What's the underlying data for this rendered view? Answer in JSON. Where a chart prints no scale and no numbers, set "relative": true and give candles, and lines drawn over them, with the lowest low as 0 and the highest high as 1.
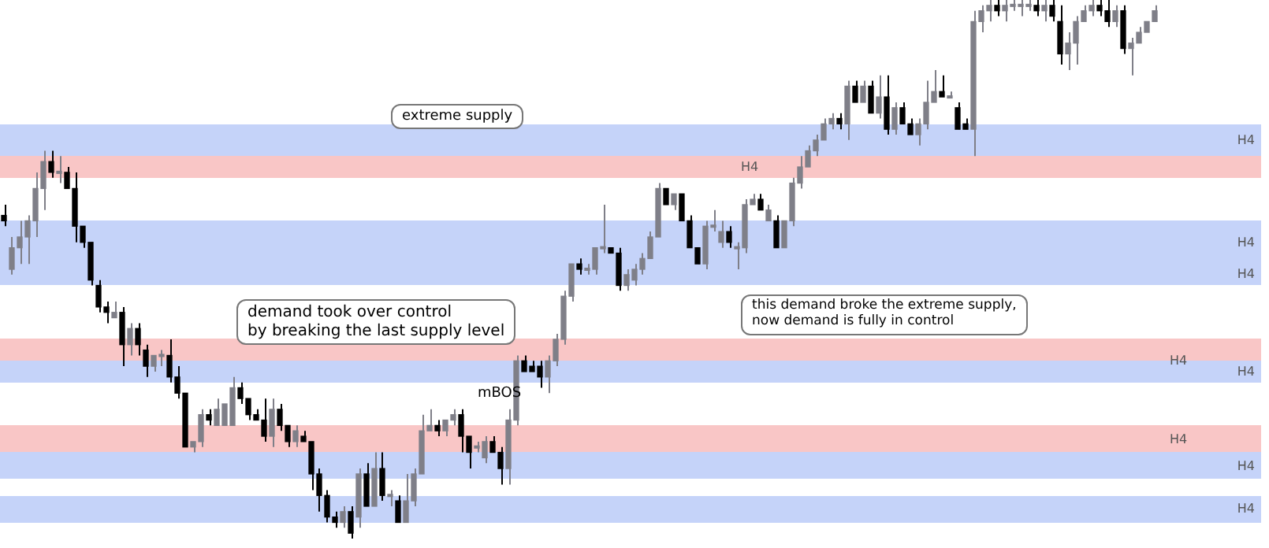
{
  "chart_data": {
    "type": "candlestick",
    "relative": true,
    "categories": [
      null,
      null,
      null,
      null,
      null,
      null,
      null,
      null,
      null,
      null,
      null,
      null,
      null,
      null,
      null,
      null,
      null,
      null,
      null,
      null,
      null,
      null,
      null,
      null,
      null,
      null,
      null,
      null,
      null,
      null,
      null,
      null,
      null,
      null,
      null,
      null,
      null,
      null,
      null,
      null,
      null,
      null,
      null,
      null,
      null,
      null,
      null,
      null,
      null,
      null,
      null,
      null,
      null,
      null,
      null,
      null,
      null,
      null,
      null,
      null,
      null,
      null,
      null,
      null,
      null,
      null,
      null,
      null,
      null,
      null,
      null,
      null,
      null,
      null,
      null,
      null,
      null,
      null,
      null,
      null,
      null,
      null,
      null,
      null,
      null,
      null,
      null,
      null,
      null,
      null,
      null,
      null,
      null,
      null,
      null,
      null,
      null,
      null,
      null,
      null,
      null,
      null,
      null,
      null,
      null,
      null,
      null,
      null,
      null,
      null,
      null,
      null,
      null,
      null,
      null,
      null,
      null,
      null,
      null,
      null,
      null,
      null,
      null,
      null,
      null,
      null,
      null,
      null,
      null,
      null,
      null,
      null,
      null,
      null,
      null,
      null,
      null,
      null,
      null,
      null,
      null,
      null,
      null,
      null,
      null,
      null,
      null
    ],
    "ohlc": [
      [
        0.6,
        0.62,
        0.58,
        0.59
      ],
      [
        0.5,
        0.56,
        0.49,
        0.54
      ],
      [
        0.54,
        0.59,
        0.51,
        0.56
      ],
      [
        0.56,
        0.6,
        0.51,
        0.59
      ],
      [
        0.59,
        0.68,
        0.56,
        0.65
      ],
      [
        0.65,
        0.72,
        0.61,
        0.7
      ],
      [
        0.7,
        0.72,
        0.67,
        0.68
      ],
      [
        0.68,
        0.71,
        0.66,
        0.68
      ],
      [
        0.68,
        0.69,
        0.65,
        0.65
      ],
      [
        0.65,
        0.68,
        0.55,
        0.58
      ],
      [
        0.58,
        0.58,
        0.54,
        0.55
      ],
      [
        0.55,
        0.55,
        0.47,
        0.48
      ],
      [
        0.47,
        0.48,
        0.42,
        0.43
      ],
      [
        0.43,
        0.44,
        0.4,
        0.42
      ],
      [
        0.41,
        0.44,
        0.41,
        0.42
      ],
      [
        0.42,
        0.43,
        0.32,
        0.36
      ],
      [
        0.36,
        0.4,
        0.34,
        0.39
      ],
      [
        0.39,
        0.4,
        0.34,
        0.36
      ],
      [
        0.35,
        0.36,
        0.3,
        0.32
      ],
      [
        0.32,
        0.34,
        0.31,
        0.34
      ],
      [
        0.34,
        0.35,
        0.32,
        0.34
      ],
      [
        0.34,
        0.37,
        0.29,
        0.3
      ],
      [
        0.3,
        0.32,
        0.26,
        0.27
      ],
      [
        0.27,
        0.27,
        0.17,
        0.17
      ],
      [
        0.17,
        0.18,
        0.16,
        0.18
      ],
      [
        0.18,
        0.24,
        0.17,
        0.23
      ],
      [
        0.23,
        0.24,
        0.21,
        0.22
      ],
      [
        0.21,
        0.26,
        0.21,
        0.24
      ],
      [
        0.21,
        0.25,
        0.21,
        0.25
      ],
      [
        0.21,
        0.3,
        0.21,
        0.28
      ],
      [
        0.28,
        0.29,
        0.25,
        0.26
      ],
      [
        0.26,
        0.26,
        0.22,
        0.23
      ],
      [
        0.23,
        0.24,
        0.22,
        0.22
      ],
      [
        0.22,
        0.26,
        0.18,
        0.19
      ],
      [
        0.19,
        0.26,
        0.17,
        0.24
      ],
      [
        0.24,
        0.25,
        0.2,
        0.21
      ],
      [
        0.21,
        0.21,
        0.17,
        0.18
      ],
      [
        0.18,
        0.21,
        0.17,
        0.2
      ],
      [
        0.19,
        0.2,
        0.18,
        0.18
      ],
      [
        0.18,
        0.18,
        0.09,
        0.12
      ],
      [
        0.12,
        0.13,
        0.05,
        0.08
      ],
      [
        0.08,
        0.09,
        0.03,
        0.04
      ],
      [
        0.04,
        0.05,
        0.02,
        0.03
      ],
      [
        0.03,
        0.06,
        0.02,
        0.05
      ],
      [
        0.05,
        0.06,
        0,
        0.01
      ],
      [
        0.04,
        0.13,
        0.02,
        0.12
      ],
      [
        0.12,
        0.14,
        0.06,
        0.06
      ],
      [
        0.06,
        0.16,
        0.06,
        0.13
      ],
      [
        0.13,
        0.16,
        0.07,
        0.08
      ],
      [
        0.08,
        0.09,
        0.06,
        0.08
      ],
      [
        0.07,
        0.08,
        0.03,
        0.03
      ],
      [
        0.03,
        0.12,
        0.03,
        0.07
      ],
      [
        0.07,
        0.13,
        0.06,
        0.12
      ],
      [
        0.12,
        0.23,
        0.12,
        0.2
      ],
      [
        0.2,
        0.24,
        0.2,
        0.21
      ],
      [
        0.21,
        0.22,
        0.19,
        0.2
      ],
      [
        0.2,
        0.22,
        0.19,
        0.22
      ],
      [
        0.22,
        0.24,
        0.21,
        0.23
      ],
      [
        0.23,
        0.24,
        0.16,
        0.19
      ],
      [
        0.19,
        0.19,
        0.13,
        0.16
      ],
      [
        0.17,
        0.18,
        0.16,
        0.17
      ],
      [
        0.15,
        0.19,
        0.14,
        0.18
      ],
      [
        0.18,
        0.19,
        0.16,
        0.16
      ],
      [
        0.16,
        0.17,
        0.1,
        0.13
      ],
      [
        0.13,
        0.24,
        0.1,
        0.22
      ],
      [
        0.22,
        0.34,
        0.21,
        0.33
      ],
      [
        0.33,
        0.34,
        0.31,
        0.31
      ],
      [
        0.32,
        0.33,
        0.31,
        0.31
      ],
      [
        0.32,
        0.33,
        0.28,
        0.3
      ],
      [
        0.3,
        0.34,
        0.27,
        0.33
      ],
      [
        0.33,
        0.38,
        0.32,
        0.37
      ],
      [
        0.37,
        0.46,
        0.36,
        0.45
      ],
      [
        0.45,
        0.51,
        0.44,
        0.51
      ],
      [
        0.51,
        0.52,
        0.49,
        0.5
      ],
      [
        0.5,
        0.51,
        0.49,
        0.5
      ],
      [
        0.5,
        0.54,
        0.49,
        0.54
      ],
      [
        0.54,
        0.62,
        0.53,
        0.54
      ],
      [
        0.54,
        0.54,
        0.53,
        0.53
      ],
      [
        0.53,
        0.54,
        0.46,
        0.47
      ],
      [
        0.47,
        0.5,
        0.46,
        0.49
      ],
      [
        0.48,
        0.51,
        0.47,
        0.5
      ],
      [
        0.5,
        0.53,
        0.49,
        0.52
      ],
      [
        0.52,
        0.57,
        0.52,
        0.56
      ],
      [
        0.56,
        0.66,
        0.56,
        0.65
      ],
      [
        0.65,
        0.65,
        0.62,
        0.62
      ],
      [
        0.62,
        0.64,
        0.61,
        0.64
      ],
      [
        0.64,
        0.64,
        0.59,
        0.59
      ],
      [
        0.59,
        0.6,
        0.54,
        0.54
      ],
      [
        0.54,
        0.54,
        0.51,
        0.51
      ],
      [
        0.51,
        0.59,
        0.5,
        0.58
      ],
      [
        0.58,
        0.61,
        0.57,
        0.58
      ],
      [
        0.55,
        0.59,
        0.54,
        0.57
      ],
      [
        0.57,
        0.58,
        0.54,
        0.55
      ],
      [
        0.54,
        0.55,
        0.5,
        0.54
      ],
      [
        0.54,
        0.63,
        0.53,
        0.62
      ],
      [
        0.62,
        0.64,
        0.62,
        0.63
      ],
      [
        0.63,
        0.64,
        0.61,
        0.61
      ],
      [
        0.59,
        0.62,
        0.59,
        0.61
      ],
      [
        0.59,
        0.6,
        0.54,
        0.54
      ],
      [
        0.54,
        0.59,
        0.54,
        0.59
      ],
      [
        0.59,
        0.67,
        0.58,
        0.66
      ],
      [
        0.66,
        0.71,
        0.65,
        0.69
      ],
      [
        0.69,
        0.73,
        0.69,
        0.72
      ],
      [
        0.72,
        0.75,
        0.71,
        0.74
      ],
      [
        0.74,
        0.78,
        0.74,
        0.77
      ],
      [
        0.77,
        0.79,
        0.76,
        0.78
      ],
      [
        0.78,
        0.79,
        0.76,
        0.77
      ],
      [
        0.77,
        0.85,
        0.74,
        0.84
      ],
      [
        0.84,
        0.85,
        0.81,
        0.81
      ],
      [
        0.81,
        0.85,
        0.81,
        0.84
      ],
      [
        0.84,
        0.85,
        0.79,
        0.79
      ],
      [
        0.79,
        0.86,
        0.78,
        0.82
      ],
      [
        0.82,
        0.86,
        0.75,
        0.76
      ],
      [
        0.76,
        0.81,
        0.75,
        0.8
      ],
      [
        0.8,
        0.81,
        0.77,
        0.77
      ],
      [
        0.77,
        0.78,
        0.75,
        0.75
      ],
      [
        0.75,
        0.78,
        0.73,
        0.77
      ],
      [
        0.77,
        0.85,
        0.76,
        0.81
      ],
      [
        0.81,
        0.87,
        0.81,
        0.83
      ],
      [
        0.83,
        0.86,
        0.82,
        0.82
      ],
      [
        0.82,
        0.83,
        0.82,
        0.82
      ],
      [
        0.8,
        0.81,
        0.76,
        0.76
      ],
      [
        0.77,
        0.78,
        0.76,
        0.76
      ],
      [
        0.76,
        0.98,
        0.71,
        0.96
      ],
      [
        0.96,
        0.99,
        0.94,
        0.98
      ],
      [
        0.98,
        1,
        0.96,
        0.99
      ],
      [
        0.99,
        1,
        0.97,
        0.98
      ],
      [
        0.98,
        1,
        0.96,
        0.99
      ],
      [
        0.99,
        1,
        0.98,
        0.99
      ],
      [
        0.99,
        1,
        0.97,
        0.99
      ],
      [
        0.99,
        1,
        0.98,
        0.99
      ],
      [
        0.99,
        1,
        0.97,
        0.98
      ],
      [
        0.98,
        1,
        0.96,
        0.99
      ],
      [
        0.99,
        1,
        0.96,
        0.97
      ],
      [
        0.96,
        0.99,
        0.88,
        0.9
      ],
      [
        0.9,
        0.94,
        0.87,
        0.92
      ],
      [
        0.92,
        0.97,
        0.88,
        0.96
      ],
      [
        0.96,
        0.99,
        0.96,
        0.98
      ],
      [
        0.98,
        1,
        0.97,
        0.99
      ],
      [
        0.99,
        1,
        0.97,
        0.98
      ],
      [
        0.98,
        1,
        0.95,
        0.96
      ],
      [
        0.96,
        0.99,
        0.95,
        0.98
      ],
      [
        0.98,
        0.99,
        0.9,
        0.91
      ],
      [
        0.91,
        0.93,
        0.86,
        0.92
      ],
      [
        0.92,
        0.95,
        0.92,
        0.94
      ],
      [
        0.94,
        0.96,
        0.94,
        0.96
      ],
      [
        0.96,
        0.99,
        0.96,
        0.98
      ]
    ],
    "bands": [
      {
        "axis": "y",
        "from": 0.67,
        "to": 0.71,
        "label": "H4",
        "color": "#f9c6c6"
      },
      {
        "axis": "y",
        "from": 0.29,
        "to": 0.37,
        "label": "H4",
        "color": "#f9c6c6"
      },
      {
        "axis": "y",
        "from": 0.16,
        "to": 0.21,
        "label": "H4",
        "color": "#f9c6c6"
      },
      {
        "axis": "y",
        "from": 0.71,
        "to": 0.77,
        "label": "H4",
        "color": "#c5d3f9"
      },
      {
        "axis": "y",
        "from": 0.51,
        "to": 0.59,
        "label": "H4",
        "color": "#c5d3f9"
      },
      {
        "axis": "y",
        "from": 0.47,
        "to": 0.51,
        "label": "H4",
        "color": "#c5d3f9"
      },
      {
        "axis": "y",
        "from": 0.29,
        "to": 0.33,
        "label": "H4",
        "color": "#c5d3f9"
      },
      {
        "axis": "y",
        "from": 0.11,
        "to": 0.16,
        "label": "H4",
        "color": "#c5d3f9"
      },
      {
        "axis": "y",
        "from": 0.03,
        "to": 0.08,
        "label": "H4",
        "color": "#c5d3f9"
      }
    ],
    "annotations": [
      "extreme supply",
      "demand took over control\nby breaking the last supply level",
      "this demand broke the extreme supply,\nnow demand is fully in control",
      "mBOS"
    ]
  }
}
